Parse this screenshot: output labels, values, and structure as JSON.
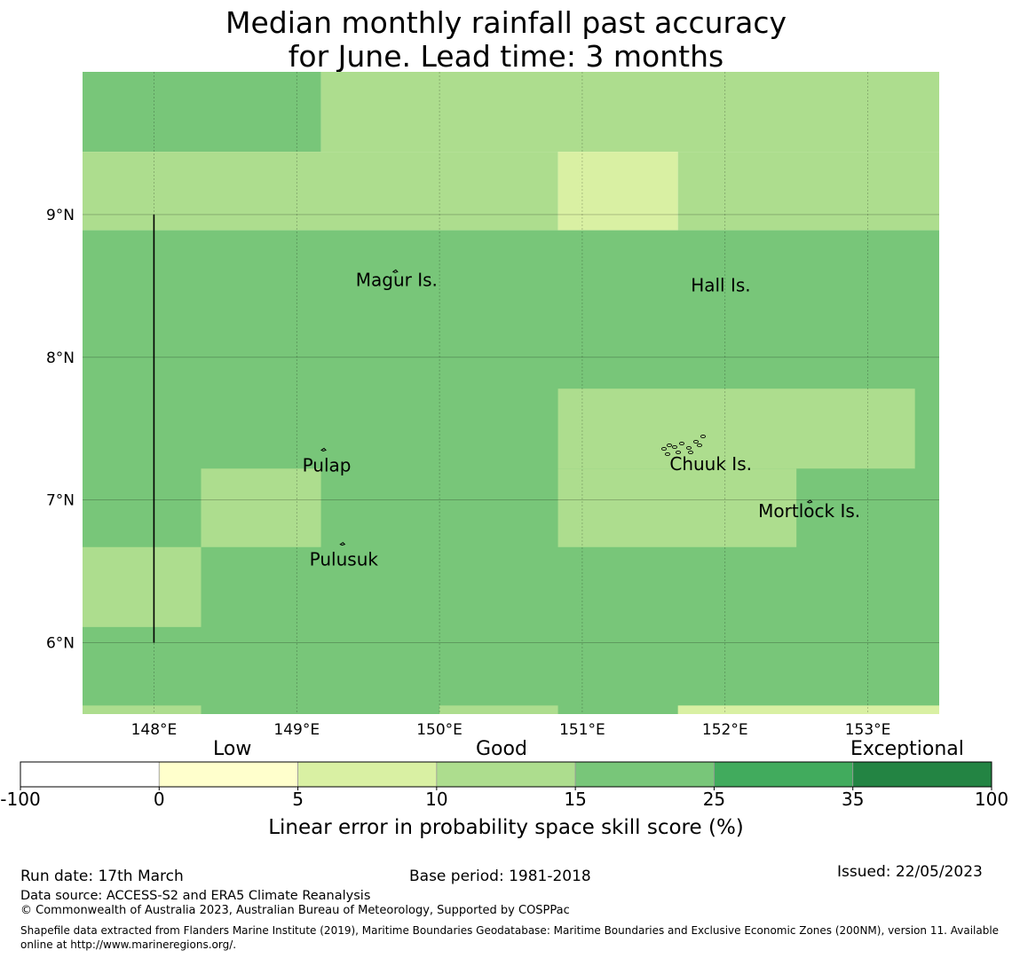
{
  "title": {
    "line1": "Median monthly rainfall past accuracy",
    "line2": "for June. Lead time: 3 months"
  },
  "map": {
    "lon_range": [
      147.5,
      153.5
    ],
    "lat_range": [
      5.5,
      10.0
    ],
    "x_ticks": [
      {
        "value": 148,
        "label": "148°E"
      },
      {
        "value": 149,
        "label": "149°E"
      },
      {
        "value": 150,
        "label": "150°E"
      },
      {
        "value": 151,
        "label": "151°E"
      },
      {
        "value": 152,
        "label": "152°E"
      },
      {
        "value": 153,
        "label": "153°E"
      }
    ],
    "y_ticks": [
      {
        "value": 9,
        "label": "9°N"
      },
      {
        "value": 8,
        "label": "8°N"
      },
      {
        "value": 7,
        "label": "7°N"
      },
      {
        "value": 6,
        "label": "6°N"
      }
    ],
    "grid_cells": [
      {
        "lon": [
          147.5,
          149.17
        ],
        "lat": [
          9.44,
          10.0
        ],
        "category": "15-25"
      },
      {
        "lon": [
          149.17,
          153.5
        ],
        "lat": [
          9.44,
          10.0
        ],
        "category": "10-15"
      },
      {
        "lon": [
          147.5,
          150.83
        ],
        "lat": [
          8.89,
          9.44
        ],
        "category": "10-15"
      },
      {
        "lon": [
          150.83,
          151.67
        ],
        "lat": [
          8.89,
          9.44
        ],
        "category": "5-10"
      },
      {
        "lon": [
          151.67,
          153.5
        ],
        "lat": [
          8.89,
          9.44
        ],
        "category": "10-15"
      },
      {
        "lon": [
          147.5,
          153.5
        ],
        "lat": [
          5.5,
          8.89
        ],
        "category": "15-25"
      },
      {
        "lon": [
          150.83,
          153.33
        ],
        "lat": [
          7.22,
          7.78
        ],
        "category": "10-15"
      },
      {
        "lon": [
          150.83,
          152.5
        ],
        "lat": [
          6.67,
          7.22
        ],
        "category": "10-15"
      },
      {
        "lon": [
          148.33,
          149.17
        ],
        "lat": [
          6.67,
          7.22
        ],
        "category": "10-15"
      },
      {
        "lon": [
          147.5,
          148.33
        ],
        "lat": [
          6.11,
          6.67
        ],
        "category": "10-15"
      },
      {
        "lon": [
          147.5,
          148.33
        ],
        "lat": [
          5.5,
          5.56
        ],
        "category": "10-15"
      },
      {
        "lon": [
          150.0,
          150.83
        ],
        "lat": [
          5.5,
          5.56
        ],
        "category": "10-15"
      },
      {
        "lon": [
          151.67,
          153.5
        ],
        "lat": [
          5.5,
          5.56
        ],
        "category": "5-10"
      }
    ],
    "boundary_line": {
      "lon": 148.0,
      "lat": [
        6.0,
        9.0
      ]
    },
    "places": [
      {
        "name": "Magur Is.",
        "lon": 149.7,
        "lat": 8.55
      },
      {
        "name": "Hall Is.",
        "lon": 151.97,
        "lat": 8.51
      },
      {
        "name": "Pulap",
        "lon": 149.21,
        "lat": 7.25
      },
      {
        "name": "Chuuk Is.",
        "lon": 151.9,
        "lat": 7.26
      },
      {
        "name": "Mortlock Is.",
        "lon": 152.59,
        "lat": 6.93
      },
      {
        "name": "Pulusuk",
        "lon": 149.33,
        "lat": 6.59
      }
    ]
  },
  "colorbar": {
    "categories": [
      {
        "label": "Low",
        "position": 1
      },
      {
        "label": "Good",
        "position": 3
      },
      {
        "label": "Exceptional",
        "position": 6
      }
    ],
    "bins": [
      {
        "from": "-100",
        "to": "0",
        "color": "#ffffff"
      },
      {
        "from": "0",
        "to": "5",
        "color": "#ffffcc"
      },
      {
        "from": "5",
        "to": "10",
        "color": "#d9f0a3"
      },
      {
        "from": "10",
        "to": "15",
        "color": "#addd8e"
      },
      {
        "from": "15",
        "to": "25",
        "color": "#78c679"
      },
      {
        "from": "25",
        "to": "35",
        "color": "#41ab5d"
      },
      {
        "from": "35",
        "to": "100",
        "color": "#238443"
      }
    ],
    "tick_labels": [
      "-100",
      "0",
      "5",
      "10",
      "15",
      "25",
      "35",
      "100"
    ],
    "axis_label": "Linear error in probability space skill score (%)"
  },
  "colors": {
    "5-10": "#d9f0a3",
    "10-15": "#addd8e",
    "15-25": "#78c679"
  },
  "footer": {
    "run_date": "Run date: 17th March",
    "base_period": "Base period: 1981-2018",
    "issued": "Issued: 22/05/2023",
    "data_source": "Data source: ACCESS-S2 and ERA5 Climate Reanalysis",
    "copyright": "© Commonwealth of Australia 2023, Australian Bureau of Meteorology, Supported by COSPPac",
    "shapefile": "Shapefile data extracted from Flanders Marine Institute (2019), Maritime Boundaries Geodatabase: Maritime Boundaries and Exclusive Economic Zones (200NM), version 11. Available online at http://www.marineregions.org/."
  }
}
